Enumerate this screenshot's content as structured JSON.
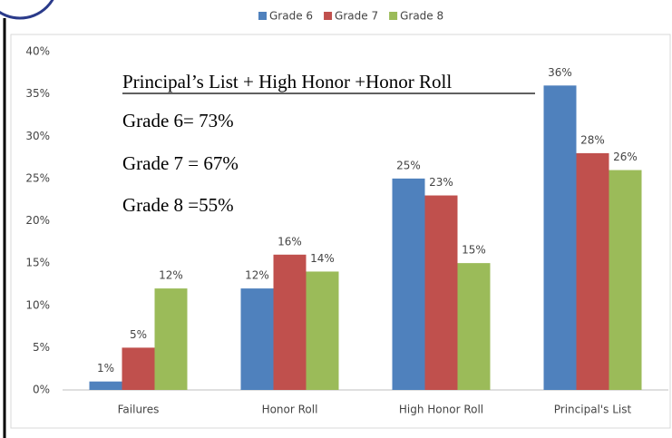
{
  "chart_data": {
    "type": "bar",
    "categories": [
      "Failures",
      "Honor Roll",
      "High Honor Roll",
      "Principal's List"
    ],
    "series": [
      {
        "name": "Grade 6",
        "color": "#4f81bd",
        "values": [
          1,
          12,
          25,
          36
        ],
        "value_labels": [
          "1%",
          "12%",
          "25%",
          "36%"
        ]
      },
      {
        "name": "Grade 7",
        "color": "#c0504d",
        "values": [
          5,
          16,
          23,
          28
        ],
        "value_labels": [
          "5%",
          "16%",
          "23%",
          "28%"
        ]
      },
      {
        "name": "Grade 8",
        "color": "#9bbb59",
        "values": [
          12,
          14,
          15,
          26
        ],
        "value_labels": [
          "12%",
          "14%",
          "15%",
          "26%"
        ]
      }
    ],
    "ylim": [
      0,
      40
    ],
    "yticks": [
      {
        "value": 0,
        "label": "0%"
      },
      {
        "value": 5,
        "label": "5%"
      },
      {
        "value": 10,
        "label": "10%"
      },
      {
        "value": 15,
        "label": "15%"
      },
      {
        "value": 20,
        "label": "20%"
      },
      {
        "value": 25,
        "label": "25%"
      },
      {
        "value": 30,
        "label": "30%"
      },
      {
        "value": 35,
        "label": "35%"
      },
      {
        "value": 40,
        "label": "40%"
      }
    ],
    "grid": false,
    "legend": "top",
    "annotations": [
      "Principal’s List + High Honor +Honor Roll",
      "Grade 6= 73%",
      "Grade 7 = 67%",
      "Grade 8 =55%"
    ]
  }
}
